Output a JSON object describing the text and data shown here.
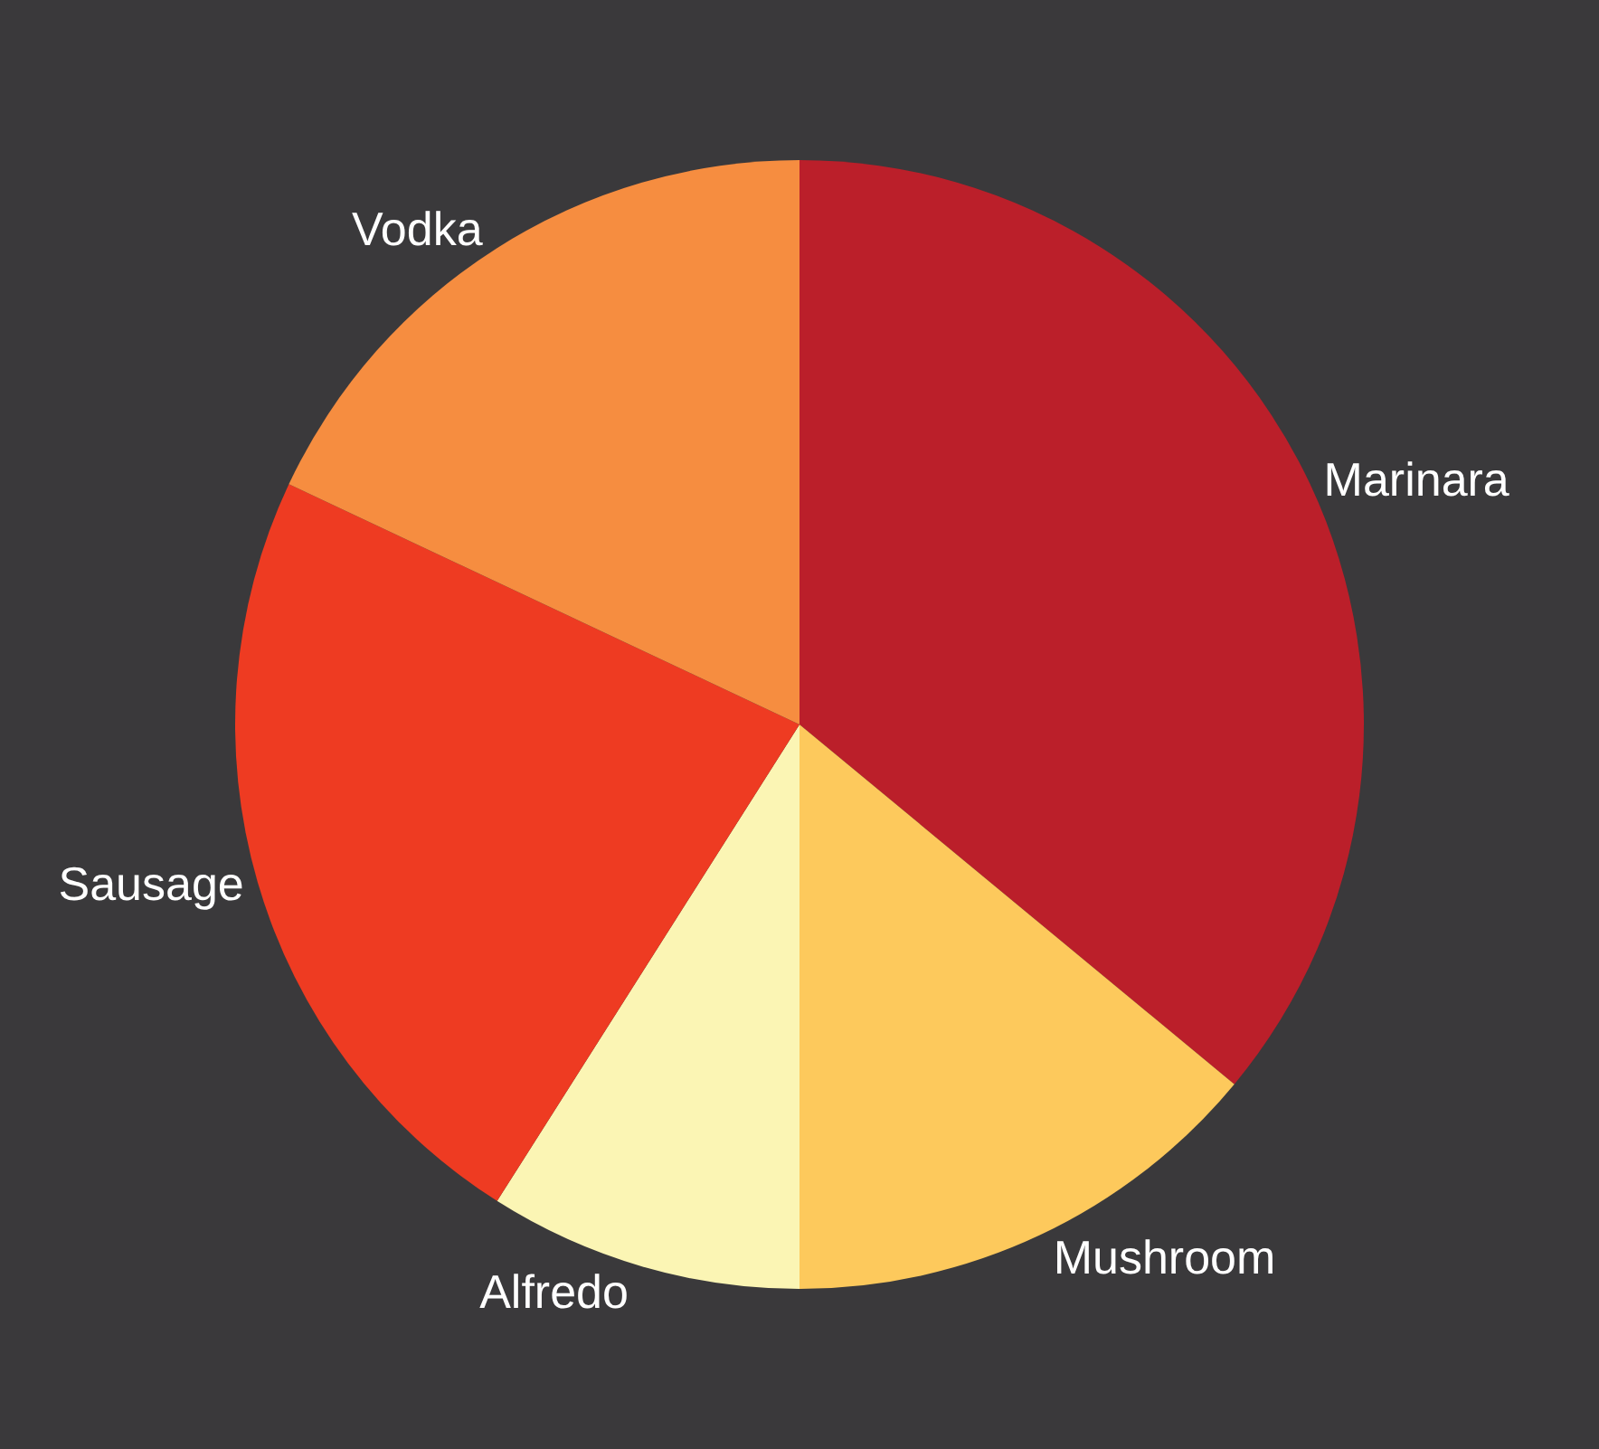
{
  "chart_data": {
    "type": "pie",
    "categories": [
      "Marinara",
      "Mushroom",
      "Alfredo",
      "Sausage",
      "Vodka"
    ],
    "values": [
      36,
      14,
      9,
      23,
      18
    ],
    "colors": [
      "#bb1f2a",
      "#fdc95c",
      "#fbf5b4",
      "#ee3b22",
      "#f68d40"
    ]
  }
}
